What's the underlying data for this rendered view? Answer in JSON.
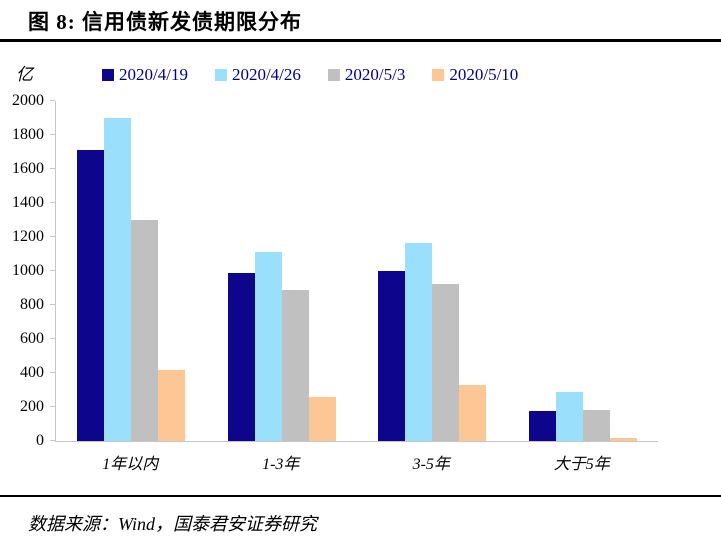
{
  "title": "图 8:  信用债新发债期限分布",
  "source_note": "数据来源：Wind，国泰君安证券研究",
  "chart_data": {
    "type": "bar",
    "title": "信用债新发债期限分布",
    "unit_label": "亿",
    "categories": [
      "1年以内",
      "1-3年",
      "3-5年",
      "大于5年"
    ],
    "series": [
      {
        "name": "2020/4/19",
        "color": "#0D068C",
        "values": [
          1710,
          990,
          1000,
          175
        ]
      },
      {
        "name": "2020/4/26",
        "color": "#9ADFFC",
        "values": [
          1900,
          1110,
          1165,
          290
        ]
      },
      {
        "name": "2020/5/3",
        "color": "#C0C0C0",
        "values": [
          1300,
          890,
          925,
          185
        ]
      },
      {
        "name": "2020/5/10",
        "color": "#FCC794",
        "values": [
          420,
          260,
          330,
          20
        ]
      }
    ],
    "xlabel": "",
    "ylabel": "亿",
    "ylim": [
      0,
      2000
    ],
    "ytick_step": 200,
    "grid": false,
    "legend_position": "top"
  },
  "colors": {
    "legend_text": "#00008B",
    "axis_line": "#C6C6C6",
    "rule": "#000000"
  }
}
